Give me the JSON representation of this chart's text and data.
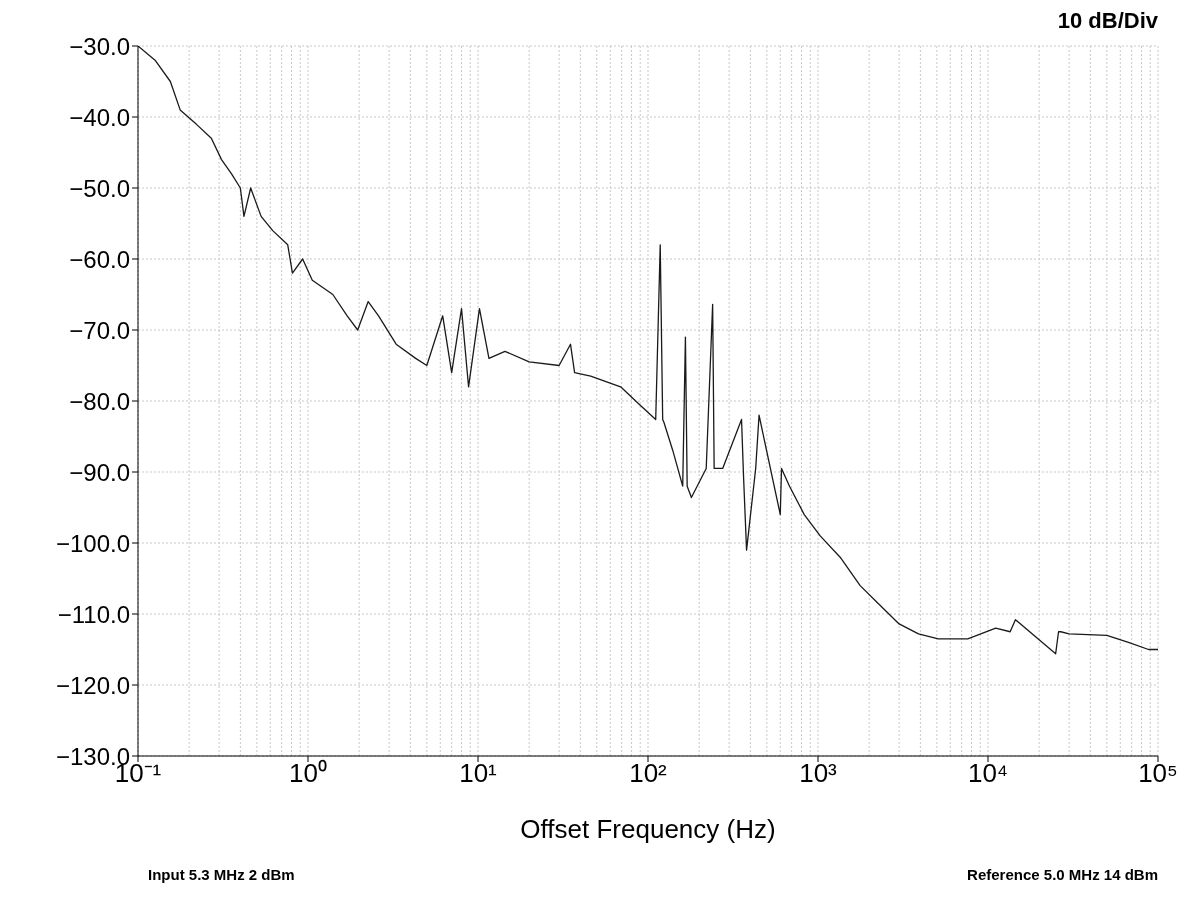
{
  "chart_data": {
    "type": "line",
    "xlabel": "Offset Frequency (Hz)",
    "annotations": [
      "10 dB/Div",
      "Input 5.3 MHz 2 dBm",
      "Reference 5.0 MHz 14 dBm"
    ],
    "log": "x",
    "grid": true,
    "marker": "none",
    "line_style": "solid",
    "xlim": [
      0.1,
      100000
    ],
    "ylim": [
      -130,
      -30
    ],
    "xticks": [
      {
        "value": 0.1,
        "label": "10⁻¹"
      },
      {
        "value": 1,
        "label": "10⁰"
      },
      {
        "value": 10,
        "label": "10¹"
      },
      {
        "value": 100,
        "label": "10²"
      },
      {
        "value": 1000,
        "label": "10³"
      },
      {
        "value": 10000,
        "label": "10⁴"
      },
      {
        "value": 100000,
        "label": "10⁵"
      }
    ],
    "yticks": [
      {
        "value": -30,
        "label": "−30.0"
      },
      {
        "value": -40,
        "label": "−40.0"
      },
      {
        "value": -50,
        "label": "−50.0"
      },
      {
        "value": -60,
        "label": "−60.0"
      },
      {
        "value": -70,
        "label": "−70.0"
      },
      {
        "value": -80,
        "label": "−80.0"
      },
      {
        "value": -90,
        "label": "−90.0"
      },
      {
        "value": -100,
        "label": "−100.0"
      },
      {
        "value": -110,
        "label": "−110.0"
      },
      {
        "value": -120,
        "label": "−120.0"
      },
      {
        "value": -130,
        "label": "−130.0"
      }
    ],
    "series": [
      {
        "color": "#1a1a1a",
        "x": [
          0.1,
          0.126,
          0.155,
          0.177,
          0.22,
          0.27,
          0.31,
          0.355,
          0.4,
          0.42,
          0.46,
          0.53,
          0.62,
          0.76,
          0.81,
          0.93,
          1.06,
          1.4,
          1.7,
          1.96,
          2.26,
          2.6,
          3.3,
          4.3,
          5.0,
          6.2,
          7.0,
          8.0,
          8.8,
          10.2,
          11.6,
          14.4,
          20,
          30,
          35,
          37,
          46,
          69,
          90,
          111,
          118,
          122,
          124,
          140,
          160,
          166,
          170,
          180,
          220,
          240,
          245,
          275,
          355,
          365,
          380,
          430,
          450,
          600,
          610,
          680,
          830,
          1030,
          1350,
          1770,
          2300,
          3000,
          3900,
          5100,
          7600,
          11100,
          13500,
          14500,
          25000,
          26000,
          26800,
          30000,
          50000,
          67000,
          88000,
          100000
        ],
        "values": [
          -30,
          -32,
          -35,
          -39,
          -41,
          -43,
          -46,
          -48,
          -50,
          -54,
          -50,
          -54,
          -56,
          -58,
          -62,
          -60,
          -63,
          -65,
          -68,
          -70,
          -66,
          -68,
          -72,
          -74,
          -75,
          -68,
          -76,
          -67,
          -78,
          -67,
          -74,
          -73,
          -74.5,
          -75,
          -72,
          -76,
          -76.5,
          -78,
          -80.6,
          -82.6,
          -58,
          -82.6,
          -83,
          -87,
          -92,
          -71,
          -92,
          -93.6,
          -89.5,
          -66.4,
          -89.5,
          -89.5,
          -82.6,
          -90.8,
          -101,
          -89.5,
          -82,
          -96,
          -89.5,
          -92,
          -96,
          -99,
          -102,
          -106,
          -108.7,
          -111.4,
          -112.8,
          -113.5,
          -113.5,
          -112,
          -112.5,
          -110.8,
          -115.6,
          -112.5,
          -112.5,
          -112.8,
          -113,
          -114,
          -115,
          -115
        ]
      }
    ]
  }
}
